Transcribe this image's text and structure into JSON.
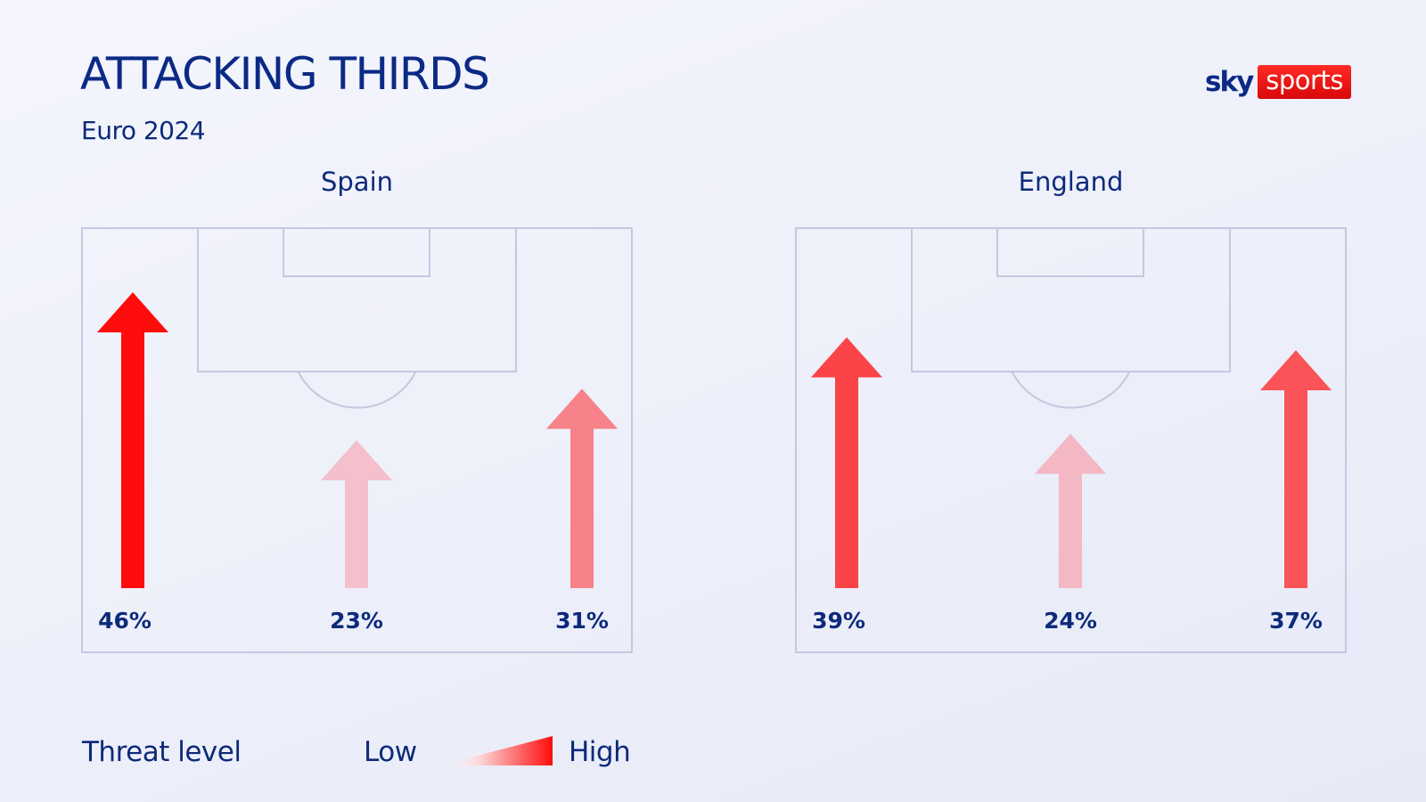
{
  "header": {
    "title": "ATTACKING THIRDS",
    "subtitle": "Euro 2024"
  },
  "logo": {
    "part1": "sky",
    "part2": "sports"
  },
  "colors": {
    "navy": "#0d2a7a",
    "pitch_lines": "#c3c9e0",
    "threat_high": "#ff0d0d",
    "threat_low": "#f2c8d4",
    "logo_red": "#e2090b"
  },
  "legend": {
    "label": "Threat level",
    "low": "Low",
    "high": "High"
  },
  "chart_data": [
    {
      "type": "bar",
      "title": "Spain",
      "categories": [
        "Left",
        "Centre",
        "Right"
      ],
      "values": [
        46,
        23,
        31
      ],
      "labels": [
        "46%",
        "23%",
        "31%"
      ],
      "unit": "%"
    },
    {
      "type": "bar",
      "title": "England",
      "categories": [
        "Left",
        "Centre",
        "Right"
      ],
      "values": [
        39,
        24,
        37
      ],
      "labels": [
        "39%",
        "24%",
        "37%"
      ],
      "unit": "%"
    }
  ]
}
